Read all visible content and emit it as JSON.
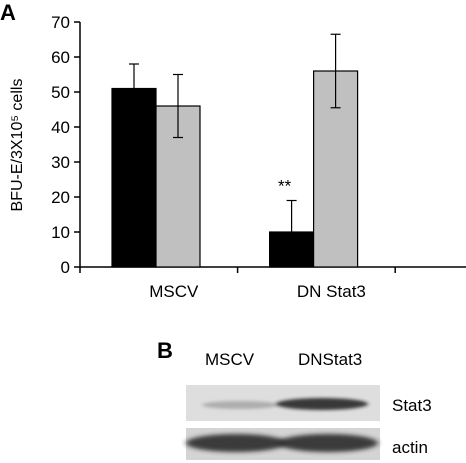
{
  "panel_a_label": "A",
  "panel_b_label": "B",
  "chart_data": {
    "type": "bar",
    "categories": [
      "MSCV",
      "DN Stat3"
    ],
    "series": [
      {
        "values": [
          51,
          10
        ],
        "errors": [
          7,
          9
        ],
        "color": "#000000"
      },
      {
        "values": [
          46,
          56
        ],
        "errors": [
          9,
          10.5
        ],
        "color": "#c0c0c0"
      }
    ],
    "ylabel": "BFU-E/3X10⁵ cells",
    "ylim": [
      0,
      70
    ],
    "yticks": [
      0,
      10,
      20,
      30,
      40,
      50,
      60,
      70
    ],
    "annotations": [
      {
        "text": "**",
        "category": "DN Stat3",
        "series": 0
      }
    ],
    "grid": false
  },
  "blot": {
    "lane_labels": [
      "MSCV",
      "DNStat3"
    ],
    "rows": [
      {
        "label": "Stat3",
        "intensities": [
          0.3,
          0.85
        ]
      },
      {
        "label": "actin",
        "intensities": [
          0.9,
          0.9
        ]
      }
    ]
  }
}
